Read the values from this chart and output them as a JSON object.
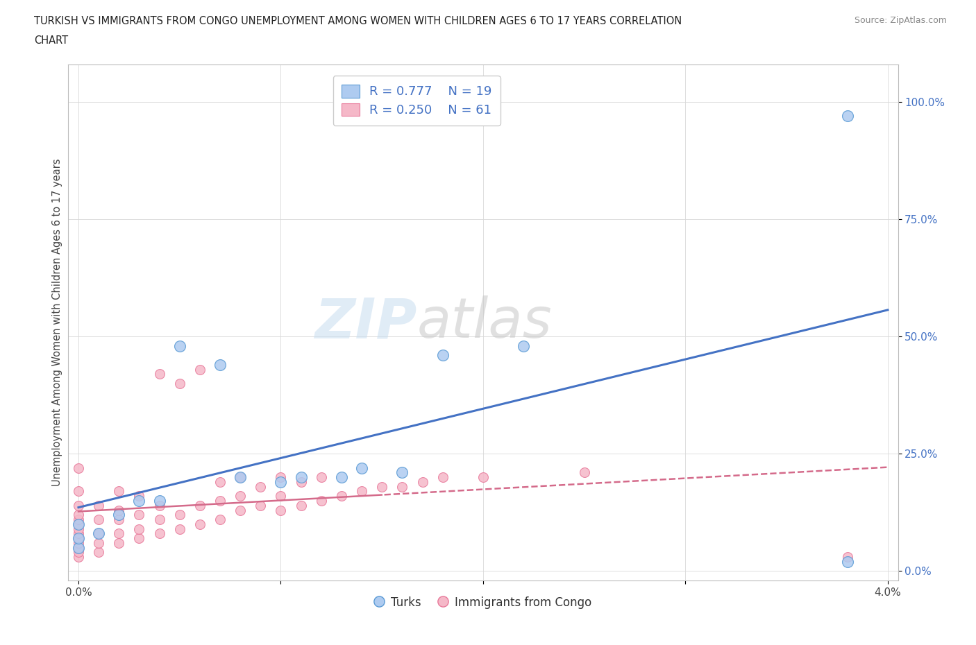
{
  "title_line1": "TURKISH VS IMMIGRANTS FROM CONGO UNEMPLOYMENT AMONG WOMEN WITH CHILDREN AGES 6 TO 17 YEARS CORRELATION",
  "title_line2": "CHART",
  "source": "Source: ZipAtlas.com",
  "ylabel": "Unemployment Among Women with Children Ages 6 to 17 years",
  "xmin": 0.0,
  "xmax": 0.04,
  "ymin": -0.02,
  "ymax": 1.08,
  "x_ticks": [
    0.0,
    0.01,
    0.02,
    0.03,
    0.04
  ],
  "x_tick_labels": [
    "0.0%",
    "",
    "",
    "",
    "4.0%"
  ],
  "y_ticks": [
    0.0,
    0.25,
    0.5,
    0.75,
    1.0
  ],
  "y_tick_labels": [
    "0.0%",
    "25.0%",
    "50.0%",
    "75.0%",
    "100.0%"
  ],
  "turks_color": "#aecbf0",
  "turks_edge_color": "#5b9bd5",
  "congo_color": "#f5b8c8",
  "congo_edge_color": "#e8799a",
  "regression_turks_color": "#4472c4",
  "regression_congo_color": "#d46a8a",
  "R_turks": 0.777,
  "N_turks": 19,
  "R_congo": 0.25,
  "N_congo": 61,
  "turks_x": [
    0.0,
    0.0,
    0.0,
    0.001,
    0.002,
    0.003,
    0.004,
    0.005,
    0.007,
    0.008,
    0.01,
    0.011,
    0.013,
    0.014,
    0.016,
    0.018,
    0.022,
    0.038,
    0.038
  ],
  "turks_y": [
    0.05,
    0.07,
    0.1,
    0.08,
    0.12,
    0.15,
    0.15,
    0.48,
    0.44,
    0.2,
    0.19,
    0.2,
    0.2,
    0.22,
    0.21,
    0.46,
    0.48,
    0.02,
    0.97
  ],
  "congo_x": [
    0.0,
    0.0,
    0.0,
    0.0,
    0.0,
    0.0,
    0.0,
    0.0,
    0.0,
    0.0,
    0.0,
    0.0,
    0.0,
    0.001,
    0.001,
    0.001,
    0.001,
    0.001,
    0.002,
    0.002,
    0.002,
    0.002,
    0.002,
    0.003,
    0.003,
    0.003,
    0.003,
    0.004,
    0.004,
    0.004,
    0.004,
    0.005,
    0.005,
    0.005,
    0.006,
    0.006,
    0.006,
    0.007,
    0.007,
    0.007,
    0.008,
    0.008,
    0.008,
    0.009,
    0.009,
    0.01,
    0.01,
    0.01,
    0.011,
    0.011,
    0.012,
    0.012,
    0.013,
    0.014,
    0.015,
    0.016,
    0.017,
    0.018,
    0.02,
    0.025,
    0.038
  ],
  "congo_y": [
    0.03,
    0.04,
    0.05,
    0.06,
    0.07,
    0.08,
    0.09,
    0.1,
    0.11,
    0.12,
    0.14,
    0.17,
    0.22,
    0.04,
    0.06,
    0.08,
    0.11,
    0.14,
    0.06,
    0.08,
    0.11,
    0.13,
    0.17,
    0.07,
    0.09,
    0.12,
    0.16,
    0.08,
    0.11,
    0.14,
    0.42,
    0.09,
    0.12,
    0.4,
    0.1,
    0.14,
    0.43,
    0.11,
    0.15,
    0.19,
    0.13,
    0.16,
    0.2,
    0.14,
    0.18,
    0.13,
    0.16,
    0.2,
    0.14,
    0.19,
    0.15,
    0.2,
    0.16,
    0.17,
    0.18,
    0.18,
    0.19,
    0.2,
    0.2,
    0.21,
    0.03
  ],
  "watermark_zip": "ZIP",
  "watermark_atlas": "atlas",
  "legend_label_turks": "Turks",
  "legend_label_congo": "Immigrants from Congo",
  "background_color": "#ffffff",
  "grid_color": "#d9d9d9"
}
